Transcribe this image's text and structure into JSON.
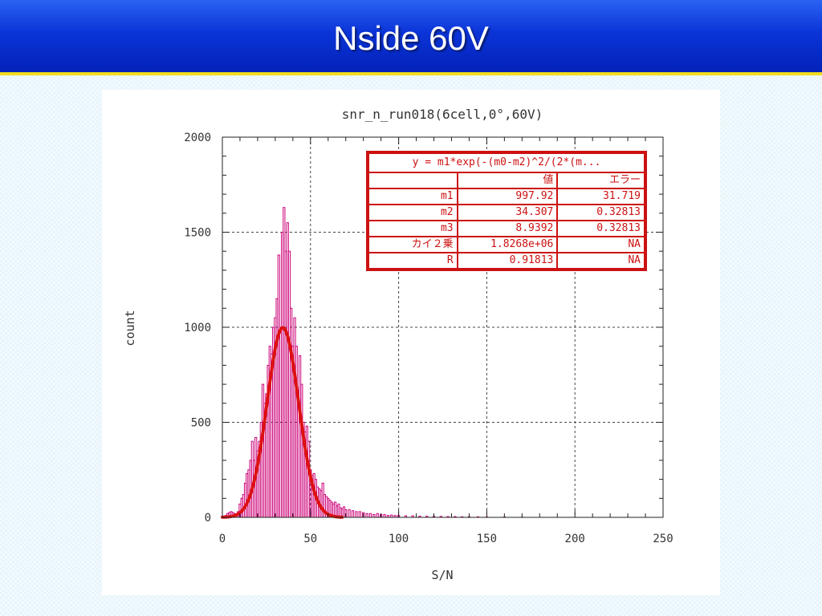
{
  "slide": {
    "title": "Nside 60V"
  },
  "chart_data": {
    "type": "bar",
    "title": "snr_n_run018(6cell,0°,60V)",
    "xlabel": "S/N",
    "ylabel": "count",
    "xlim": [
      0,
      250
    ],
    "ylim": [
      0,
      2000
    ],
    "xticks": [
      0,
      50,
      100,
      150,
      200,
      250
    ],
    "yticks": [
      0,
      500,
      1000,
      1500,
      2000
    ],
    "grid": true,
    "bin_width": 1,
    "histogram": {
      "name": "",
      "color": "#cc0077",
      "x": [
        1,
        2,
        3,
        4,
        5,
        6,
        7,
        8,
        9,
        10,
        11,
        12,
        13,
        14,
        15,
        16,
        17,
        18,
        19,
        20,
        21,
        22,
        23,
        24,
        25,
        26,
        27,
        28,
        29,
        30,
        31,
        32,
        33,
        34,
        35,
        36,
        37,
        38,
        39,
        40,
        41,
        42,
        43,
        44,
        45,
        46,
        47,
        48,
        49,
        50,
        51,
        52,
        53,
        54,
        55,
        56,
        57,
        58,
        59,
        60,
        61,
        62,
        63,
        64,
        65,
        66,
        67,
        68,
        69,
        70,
        72,
        74,
        76,
        78,
        80,
        82,
        84,
        86,
        88,
        90,
        92,
        94,
        96,
        98,
        100,
        104,
        108,
        112,
        116,
        120,
        124,
        128,
        132,
        136,
        140,
        145,
        150,
        160,
        170
      ],
      "values": [
        5,
        10,
        20,
        25,
        30,
        25,
        20,
        10,
        30,
        70,
        100,
        120,
        180,
        230,
        250,
        300,
        400,
        300,
        420,
        350,
        400,
        500,
        700,
        600,
        650,
        800,
        900,
        860,
        1000,
        1050,
        1150,
        1380,
        1000,
        1500,
        1630,
        1400,
        1550,
        1400,
        1100,
        900,
        1050,
        900,
        650,
        850,
        700,
        500,
        450,
        480,
        400,
        250,
        220,
        230,
        200,
        160,
        150,
        140,
        180,
        120,
        110,
        100,
        90,
        80,
        70,
        80,
        60,
        70,
        50,
        45,
        55,
        40,
        40,
        35,
        30,
        30,
        25,
        20,
        20,
        15,
        20,
        15,
        15,
        10,
        12,
        10,
        10,
        8,
        8,
        6,
        6,
        5,
        5,
        4,
        4,
        3,
        3,
        3,
        2,
        2,
        1
      ]
    },
    "fit_curve": {
      "color": "#dd1111",
      "model": "gaussian",
      "m1": 997.92,
      "m2": 34.307,
      "m3": 8.9392,
      "x_range": [
        0,
        68
      ]
    },
    "annotation": {
      "formula": "y = m1*exp(-(m0-m2)^2/(2*(m...",
      "header": [
        "",
        "値",
        "エラー"
      ],
      "rows": [
        [
          "m1",
          "997.92",
          "31.719"
        ],
        [
          "m2",
          "34.307",
          "0.32813"
        ],
        [
          "m3",
          "8.9392",
          "0.32813"
        ],
        [
          "カイ２乗",
          "1.8268e+06",
          "NA"
        ],
        [
          "R",
          "0.91813",
          "NA"
        ]
      ]
    }
  }
}
